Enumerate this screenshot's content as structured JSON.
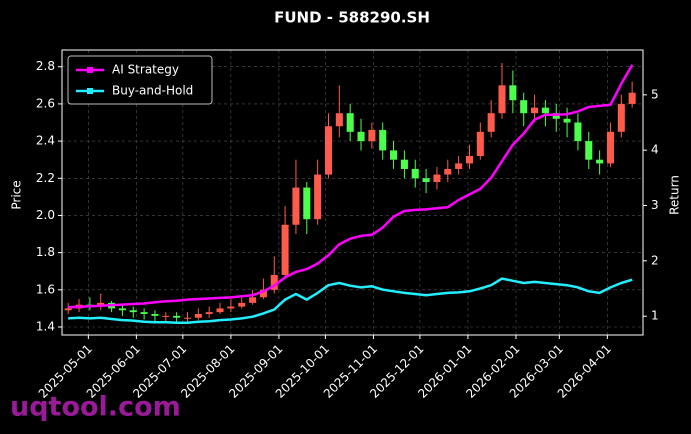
{
  "chart_data": {
    "type": "candlestick",
    "title": "FUND - 588290.SH",
    "ylabel": "Price",
    "y2label": "Return",
    "watermark": "uqtool.com",
    "x": [
      "2025-04-18",
      "2025-04-25",
      "2025-05-02",
      "2025-05-09",
      "2025-05-16",
      "2025-05-23",
      "2025-05-30",
      "2025-06-06",
      "2025-06-13",
      "2025-06-20",
      "2025-06-27",
      "2025-07-04",
      "2025-07-11",
      "2025-07-18",
      "2025-07-25",
      "2025-08-01",
      "2025-08-08",
      "2025-08-15",
      "2025-08-22",
      "2025-08-29",
      "2025-09-05",
      "2025-09-12",
      "2025-09-19",
      "2025-09-26",
      "2025-10-03",
      "2025-10-10",
      "2025-10-17",
      "2025-10-24",
      "2025-10-31",
      "2025-11-07",
      "2025-11-14",
      "2025-11-21",
      "2025-11-28",
      "2025-12-05",
      "2025-12-12",
      "2025-12-19",
      "2025-12-26",
      "2026-01-02",
      "2026-01-09",
      "2026-01-16",
      "2026-01-23",
      "2026-01-30",
      "2026-02-06",
      "2026-02-13",
      "2026-02-20",
      "2026-02-27",
      "2026-03-06",
      "2026-03-13",
      "2026-03-20",
      "2026-03-27",
      "2026-04-03",
      "2026-04-10",
      "2026-04-17"
    ],
    "open": [
      1.49,
      1.5,
      1.52,
      1.51,
      1.53,
      1.5,
      1.49,
      1.48,
      1.47,
      1.46,
      1.46,
      1.45,
      1.45,
      1.47,
      1.48,
      1.5,
      1.51,
      1.53,
      1.56,
      1.6,
      1.68,
      1.95,
      2.15,
      1.98,
      2.22,
      2.48,
      2.55,
      2.45,
      2.4,
      2.46,
      2.35,
      2.3,
      2.25,
      2.2,
      2.18,
      2.22,
      2.25,
      2.28,
      2.32,
      2.45,
      2.55,
      2.7,
      2.62,
      2.55,
      2.58,
      2.55,
      2.52,
      2.5,
      2.4,
      2.3,
      2.28,
      2.45,
      2.6
    ],
    "high": [
      1.53,
      1.55,
      1.56,
      1.58,
      1.54,
      1.52,
      1.51,
      1.5,
      1.49,
      1.48,
      1.48,
      1.48,
      1.5,
      1.51,
      1.53,
      1.55,
      1.57,
      1.6,
      1.66,
      1.78,
      2.05,
      2.3,
      2.18,
      2.3,
      2.55,
      2.7,
      2.6,
      2.52,
      2.5,
      2.5,
      2.4,
      2.35,
      2.3,
      2.25,
      2.26,
      2.3,
      2.32,
      2.38,
      2.5,
      2.62,
      2.82,
      2.78,
      2.66,
      2.65,
      2.62,
      2.6,
      2.58,
      2.55,
      2.45,
      2.35,
      2.5,
      2.65,
      2.72
    ],
    "low": [
      1.47,
      1.48,
      1.49,
      1.49,
      1.48,
      1.46,
      1.45,
      1.44,
      1.43,
      1.43,
      1.42,
      1.43,
      1.44,
      1.45,
      1.47,
      1.48,
      1.5,
      1.52,
      1.55,
      1.58,
      1.66,
      1.9,
      1.9,
      1.95,
      2.2,
      2.42,
      2.4,
      2.35,
      2.36,
      2.3,
      2.25,
      2.2,
      2.15,
      2.12,
      2.14,
      2.18,
      2.22,
      2.25,
      2.3,
      2.42,
      2.52,
      2.55,
      2.48,
      2.5,
      2.48,
      2.45,
      2.42,
      2.35,
      2.25,
      2.22,
      2.26,
      2.42,
      2.58
    ],
    "close": [
      1.5,
      1.52,
      1.51,
      1.53,
      1.5,
      1.49,
      1.48,
      1.47,
      1.46,
      1.46,
      1.45,
      1.45,
      1.47,
      1.48,
      1.5,
      1.51,
      1.53,
      1.56,
      1.6,
      1.68,
      1.95,
      2.15,
      1.98,
      2.22,
      2.48,
      2.55,
      2.45,
      2.4,
      2.46,
      2.35,
      2.3,
      2.25,
      2.2,
      2.18,
      2.22,
      2.25,
      2.28,
      2.32,
      2.45,
      2.55,
      2.7,
      2.62,
      2.55,
      2.58,
      2.55,
      2.52,
      2.5,
      2.4,
      2.3,
      2.28,
      2.45,
      2.6,
      2.66
    ],
    "up_color": "#ff5a4a",
    "down_color": "#4cff4c",
    "series": [
      {
        "name": "AI Strategy",
        "color": "#ff00ff",
        "axis": "y2",
        "values": [
          1.16,
          1.17,
          1.18,
          1.19,
          1.2,
          1.21,
          1.22,
          1.23,
          1.25,
          1.27,
          1.28,
          1.3,
          1.31,
          1.32,
          1.33,
          1.34,
          1.36,
          1.38,
          1.45,
          1.55,
          1.7,
          1.8,
          1.85,
          1.95,
          2.1,
          2.3,
          2.4,
          2.45,
          2.47,
          2.6,
          2.8,
          2.9,
          2.92,
          2.93,
          2.95,
          2.97,
          3.1,
          3.2,
          3.3,
          3.5,
          3.8,
          4.1,
          4.3,
          4.55,
          4.64,
          4.64,
          4.65,
          4.7,
          4.78,
          4.8,
          4.82,
          5.2,
          5.54
        ]
      },
      {
        "name": "Buy-and-Hold",
        "color": "#22eeff",
        "axis": "y2",
        "values": [
          0.96,
          0.97,
          0.96,
          0.97,
          0.95,
          0.93,
          0.92,
          0.9,
          0.89,
          0.89,
          0.88,
          0.88,
          0.9,
          0.91,
          0.93,
          0.94,
          0.96,
          0.99,
          1.05,
          1.12,
          1.3,
          1.4,
          1.3,
          1.42,
          1.56,
          1.6,
          1.55,
          1.52,
          1.54,
          1.48,
          1.45,
          1.42,
          1.4,
          1.38,
          1.4,
          1.42,
          1.43,
          1.45,
          1.5,
          1.56,
          1.68,
          1.64,
          1.6,
          1.62,
          1.6,
          1.58,
          1.56,
          1.52,
          1.45,
          1.42,
          1.52,
          1.6,
          1.66
        ]
      }
    ],
    "xlim": [
      "2025-04-14",
      "2026-04-24"
    ],
    "xticks": [
      "2025-05-01",
      "2025-06-01",
      "2025-07-01",
      "2025-08-01",
      "2025-09-01",
      "2025-10-01",
      "2025-11-01",
      "2025-12-01",
      "2026-01-01",
      "2026-02-01",
      "2026-03-01",
      "2026-04-01"
    ],
    "ylim": [
      1.357,
      2.89
    ],
    "yticks": [
      1.4,
      1.6,
      1.8,
      {
        "value": 2,
        "label": "2.0"
      },
      2.2,
      2.4,
      2.6,
      2.8
    ],
    "y2lim": [
      0.66,
      5.81
    ],
    "y2ticks": [
      1,
      2,
      3,
      4,
      5
    ],
    "grid": true,
    "legend": "upper left"
  }
}
